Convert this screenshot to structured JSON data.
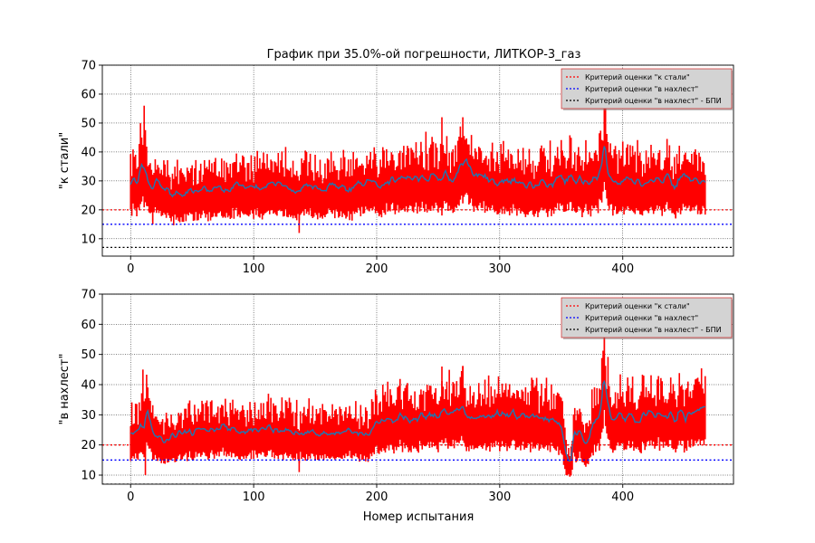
{
  "figure": {
    "title": "График при 35.0%-ой погрешности, ЛИТКОР-3_газ",
    "xlabel": "Номер испытания"
  },
  "colors": {
    "error_band": "#ff0000",
    "series_line": "#1f77b4",
    "crit_steel": "#ff0000",
    "crit_overlap": "#0000ff",
    "crit_overlap_bpi": "#000000",
    "grid": "#000000",
    "legend_bg": "#d3d3d3"
  },
  "legend_items": [
    "Критерий оценки \"к стали\"",
    "Критерий оценки \"в нахлест\"",
    "Критерий оценки \"в нахлест\" - БПИ"
  ],
  "chart_data": [
    {
      "type": "line",
      "title": "График при 35.0%-ой погрешности, ЛИТКОР-3_газ",
      "xlabel": "",
      "ylabel": "\"к стали\"",
      "xlim": [
        -23,
        490
      ],
      "ylim": [
        4,
        70
      ],
      "xticks": [
        0,
        100,
        200,
        300,
        400
      ],
      "yticks": [
        10,
        20,
        30,
        40,
        50,
        60,
        70
      ],
      "grid": true,
      "legend_position": "top-right",
      "n_points": 468,
      "error_percent": 35.0,
      "series_anchors": {
        "x": [
          0,
          5,
          9,
          11,
          13,
          15,
          18,
          22,
          26,
          30,
          35,
          40,
          45,
          50,
          55,
          60,
          65,
          70,
          75,
          80,
          90,
          100,
          110,
          120,
          130,
          135,
          137,
          140,
          150,
          160,
          170,
          180,
          190,
          200,
          205,
          210,
          215,
          220,
          230,
          240,
          245,
          250,
          255,
          260,
          265,
          268,
          272,
          276,
          280,
          290,
          300,
          310,
          320,
          330,
          340,
          350,
          360,
          370,
          375,
          380,
          383,
          385,
          387,
          390,
          400,
          410,
          420,
          430,
          440,
          443,
          445,
          447,
          450,
          460,
          467
        ],
        "y": [
          31,
          30,
          35,
          31,
          34,
          29,
          27,
          31,
          26,
          28,
          25,
          26,
          25,
          27,
          27,
          27,
          26,
          27,
          27,
          28,
          29,
          28,
          28,
          29,
          28,
          27,
          26,
          28,
          28,
          28,
          28,
          27,
          29,
          28,
          28,
          31,
          30,
          32,
          32,
          31,
          32,
          30,
          32,
          30,
          31,
          34,
          37,
          35,
          32,
          31,
          30,
          30,
          29,
          29,
          29,
          30,
          31,
          30,
          30,
          31,
          36,
          44,
          34,
          30,
          30,
          30,
          30,
          30,
          31,
          27,
          31,
          30,
          31,
          30,
          30
        ]
      },
      "spikes": [
        {
          "x": 8,
          "y": 22
        },
        {
          "x": 11,
          "y": 56
        },
        {
          "x": 18,
          "y": 15
        },
        {
          "x": 99,
          "y": 19
        },
        {
          "x": 137,
          "y": 12
        },
        {
          "x": 240,
          "y": 47
        },
        {
          "x": 253,
          "y": 52
        },
        {
          "x": 270,
          "y": 52
        },
        {
          "x": 385,
          "y": 56
        },
        {
          "x": 443,
          "y": 17
        }
      ],
      "band_note": "± 35.0%",
      "reference_lines": [
        {
          "name": "Критерий оценки \"к стали\"",
          "y": 20,
          "color": "#ff0000"
        },
        {
          "name": "Критерий оценки \"в нахлест\"",
          "y": 15,
          "color": "#0000ff"
        },
        {
          "name": "Критерий оценки \"в нахлест\" - БПИ",
          "y": 7,
          "color": "#000000"
        }
      ]
    },
    {
      "type": "line",
      "title": "",
      "xlabel": "Номер испытания",
      "ylabel": "\"в нахлест\"",
      "xlim": [
        -23,
        490
      ],
      "ylim": [
        7,
        70
      ],
      "xticks": [
        0,
        100,
        200,
        300,
        400
      ],
      "yticks": [
        10,
        20,
        30,
        40,
        50,
        60,
        70
      ],
      "grid": true,
      "legend_position": "top-right",
      "n_points": 468,
      "error_percent": 35.0,
      "series_anchors": {
        "x": [
          0,
          5,
          9,
          11,
          13,
          16,
          20,
          25,
          30,
          35,
          40,
          50,
          60,
          70,
          75,
          80,
          90,
          100,
          110,
          120,
          130,
          135,
          137,
          140,
          150,
          160,
          170,
          180,
          190,
          195,
          200,
          210,
          220,
          230,
          240,
          250,
          255,
          260,
          265,
          270,
          275,
          280,
          290,
          300,
          310,
          320,
          330,
          340,
          348,
          352,
          355,
          358,
          360,
          365,
          370,
          375,
          380,
          383,
          385,
          387,
          390,
          400,
          410,
          420,
          430,
          440,
          443,
          445,
          450,
          460,
          467
        ],
        "y": [
          25,
          24,
          27,
          24,
          31,
          27,
          23,
          22,
          21,
          24,
          24,
          24,
          25,
          25,
          26,
          25,
          25,
          25,
          25,
          25,
          25,
          25,
          24,
          25,
          24,
          24,
          24,
          25,
          24,
          23,
          27,
          28,
          29,
          28,
          30,
          29,
          31,
          30,
          31,
          32,
          29,
          29,
          29,
          30,
          30,
          30,
          29,
          28,
          28,
          22,
          15,
          14,
          24,
          25,
          19,
          27,
          29,
          34,
          44,
          34,
          30,
          29,
          29,
          30,
          30,
          30,
          27,
          31,
          30,
          31,
          31
        ]
      },
      "spikes": [
        {
          "x": 8,
          "y": 22
        },
        {
          "x": 10,
          "y": 45
        },
        {
          "x": 12,
          "y": 10
        },
        {
          "x": 137,
          "y": 11
        },
        {
          "x": 253,
          "y": 46
        },
        {
          "x": 270,
          "y": 46
        },
        {
          "x": 354,
          "y": 10
        },
        {
          "x": 385,
          "y": 58
        }
      ],
      "band_note": "± 35.0%",
      "reference_lines": [
        {
          "name": "Критерий оценки \"к стали\"",
          "y": 20,
          "color": "#ff0000"
        },
        {
          "name": "Критерий оценки \"в нахлест\"",
          "y": 15,
          "color": "#0000ff"
        },
        {
          "name": "Критерий оценки \"в нахлест\" - БПИ",
          "y": 7,
          "color": "#000000"
        }
      ]
    }
  ]
}
